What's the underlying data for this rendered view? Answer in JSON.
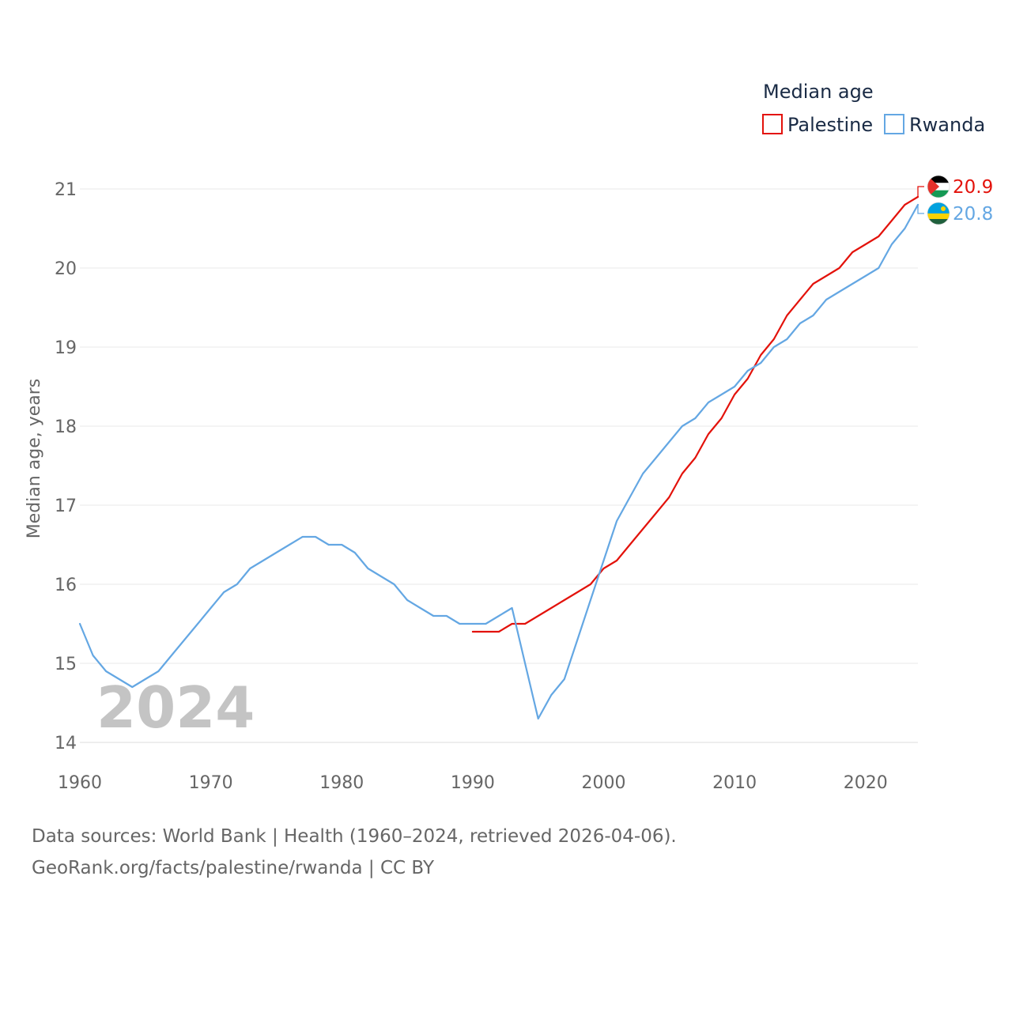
{
  "chart_data": {
    "type": "line",
    "title": "",
    "legend_title": "Median age",
    "legend_position": "top-right",
    "ylabel": "Median age, years",
    "xlabel": "",
    "xlim": [
      1960,
      2024
    ],
    "ylim": [
      14,
      21
    ],
    "xticks": [
      1960,
      1970,
      1980,
      1990,
      2000,
      2010,
      2020
    ],
    "yticks": [
      14,
      15,
      16,
      17,
      18,
      19,
      20,
      21
    ],
    "grid": true,
    "watermark_year": "2024",
    "series": [
      {
        "name": "Palestine",
        "color": "#e3120b",
        "end_label": "20.9",
        "flag_icon": "palestine-flag-icon",
        "points": [
          [
            1990,
            15.4
          ],
          [
            1991,
            15.4
          ],
          [
            1992,
            15.4
          ],
          [
            1993,
            15.5
          ],
          [
            1994,
            15.5
          ],
          [
            1995,
            15.6
          ],
          [
            1996,
            15.7
          ],
          [
            1997,
            15.8
          ],
          [
            1998,
            15.9
          ],
          [
            1999,
            16.0
          ],
          [
            2000,
            16.2
          ],
          [
            2001,
            16.3
          ],
          [
            2002,
            16.5
          ],
          [
            2003,
            16.7
          ],
          [
            2004,
            16.9
          ],
          [
            2005,
            17.1
          ],
          [
            2006,
            17.4
          ],
          [
            2007,
            17.6
          ],
          [
            2008,
            17.9
          ],
          [
            2009,
            18.1
          ],
          [
            2010,
            18.4
          ],
          [
            2011,
            18.6
          ],
          [
            2012,
            18.9
          ],
          [
            2013,
            19.1
          ],
          [
            2014,
            19.4
          ],
          [
            2015,
            19.6
          ],
          [
            2016,
            19.8
          ],
          [
            2017,
            19.9
          ],
          [
            2018,
            20.0
          ],
          [
            2019,
            20.2
          ],
          [
            2020,
            20.3
          ],
          [
            2021,
            20.4
          ],
          [
            2022,
            20.6
          ],
          [
            2023,
            20.8
          ],
          [
            2024,
            20.9
          ]
        ]
      },
      {
        "name": "Rwanda",
        "color": "#64a7e3",
        "end_label": "20.8",
        "flag_icon": "rwanda-flag-icon",
        "points": [
          [
            1960,
            15.5
          ],
          [
            1961,
            15.1
          ],
          [
            1962,
            14.9
          ],
          [
            1963,
            14.8
          ],
          [
            1964,
            14.7
          ],
          [
            1965,
            14.8
          ],
          [
            1966,
            14.9
          ],
          [
            1967,
            15.1
          ],
          [
            1968,
            15.3
          ],
          [
            1969,
            15.5
          ],
          [
            1970,
            15.7
          ],
          [
            1971,
            15.9
          ],
          [
            1972,
            16.0
          ],
          [
            1973,
            16.2
          ],
          [
            1974,
            16.3
          ],
          [
            1975,
            16.4
          ],
          [
            1976,
            16.5
          ],
          [
            1977,
            16.6
          ],
          [
            1978,
            16.6
          ],
          [
            1979,
            16.5
          ],
          [
            1980,
            16.5
          ],
          [
            1981,
            16.4
          ],
          [
            1982,
            16.2
          ],
          [
            1983,
            16.1
          ],
          [
            1984,
            16.0
          ],
          [
            1985,
            15.8
          ],
          [
            1986,
            15.7
          ],
          [
            1987,
            15.6
          ],
          [
            1988,
            15.6
          ],
          [
            1989,
            15.5
          ],
          [
            1990,
            15.5
          ],
          [
            1991,
            15.5
          ],
          [
            1992,
            15.6
          ],
          [
            1993,
            15.7
          ],
          [
            1994,
            15.0
          ],
          [
            1995,
            14.3
          ],
          [
            1996,
            14.6
          ],
          [
            1997,
            14.8
          ],
          [
            1998,
            15.3
          ],
          [
            1999,
            15.8
          ],
          [
            2000,
            16.3
          ],
          [
            2001,
            16.8
          ],
          [
            2002,
            17.1
          ],
          [
            2003,
            17.4
          ],
          [
            2004,
            17.6
          ],
          [
            2005,
            17.8
          ],
          [
            2006,
            18.0
          ],
          [
            2007,
            18.1
          ],
          [
            2008,
            18.3
          ],
          [
            2009,
            18.4
          ],
          [
            2010,
            18.5
          ],
          [
            2011,
            18.7
          ],
          [
            2012,
            18.8
          ],
          [
            2013,
            19.0
          ],
          [
            2014,
            19.1
          ],
          [
            2015,
            19.3
          ],
          [
            2016,
            19.4
          ],
          [
            2017,
            19.6
          ],
          [
            2018,
            19.7
          ],
          [
            2019,
            19.8
          ],
          [
            2020,
            19.9
          ],
          [
            2021,
            20.0
          ],
          [
            2022,
            20.3
          ],
          [
            2023,
            20.5
          ],
          [
            2024,
            20.8
          ]
        ]
      }
    ]
  },
  "footer": {
    "source_line": "Data sources: World Bank | Health (1960–2024, retrieved 2026-04-06).",
    "attribution_line": "GeoRank.org/facts/palestine/rwanda | CC BY"
  }
}
